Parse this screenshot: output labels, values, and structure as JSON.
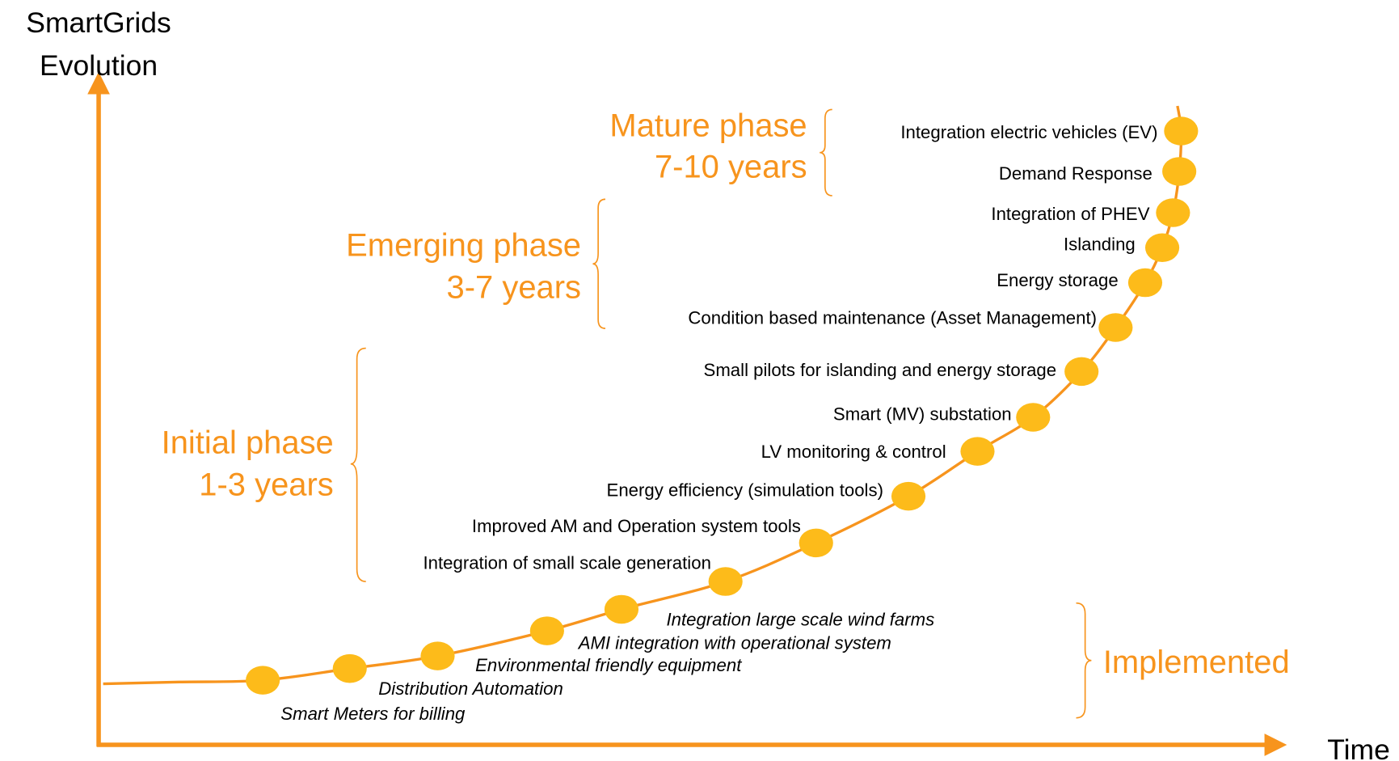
{
  "axes": {
    "y_label": [
      "SmartGrids",
      "Evolution"
    ],
    "x_label": "Time"
  },
  "phases": [
    {
      "name": "Mature phase",
      "duration": "7-10 years"
    },
    {
      "name": "Emerging phase",
      "duration": "3-7 years"
    },
    {
      "name": "Initial phase",
      "duration": "1-3 years"
    },
    {
      "name": "Implemented"
    }
  ],
  "implemented_milestones": [
    "Smart Meters for billing",
    "Distribution Automation",
    "Environmental friendly equipment",
    "AMI integration with operational system",
    "Integration large scale wind farms"
  ],
  "planned_milestones": [
    "Integration of small scale generation",
    "Improved AM and Operation system tools",
    "Energy efficiency (simulation tools)",
    "LV monitoring & control",
    "Smart (MV) substation",
    "Small pilots for islanding and energy storage",
    "Condition based maintenance (Asset Management)",
    "Energy storage",
    "Islanding",
    "Integration of PHEV",
    "Demand Response",
    "Integration electric vehicles (EV)"
  ]
}
